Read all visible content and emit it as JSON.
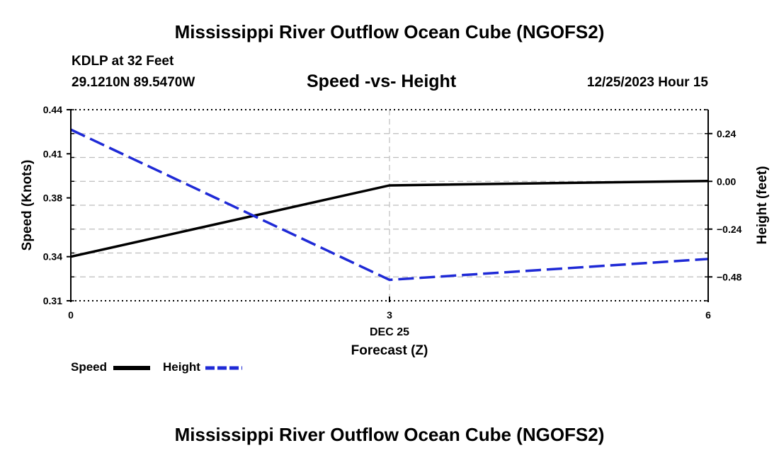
{
  "page_title": "Mississippi River Outflow Ocean Cube (NGOFS2)",
  "footer_title": "Mississippi River Outflow Ocean Cube (NGOFS2)",
  "station": {
    "name": "KDLP at 32 Feet",
    "coords": "29.1210N  89.5470W",
    "datetime": "12/25/2023 Hour 15"
  },
  "colors": {
    "speed": "#000000",
    "height": "#1f2ad6",
    "grid": "#bdbdbd"
  },
  "chart_data": {
    "type": "line",
    "title": "Speed -vs- Height",
    "xlabel": "Forecast (Z)",
    "x_date_label": "DEC 25",
    "x": [
      0,
      3,
      6
    ],
    "x_ticks": [
      "0",
      "3",
      "6"
    ],
    "xlim": [
      0,
      6
    ],
    "y_left": {
      "label": "Speed (Knots)",
      "lim": [
        0.31,
        0.44
      ],
      "ticks": [
        "0.44",
        "0.41",
        "0.38",
        "0.34",
        "0.31"
      ]
    },
    "y_right": {
      "label": "Height (feet)",
      "lim": [
        -0.6,
        0.36
      ],
      "ticks": [
        "0.24",
        "0.00",
        "−0.24",
        "−0.48"
      ]
    },
    "series": [
      {
        "name": "Speed",
        "axis": "left",
        "style": "solid",
        "values": [
          0.34,
          0.3885,
          0.3915
        ]
      },
      {
        "name": "Height",
        "axis": "right",
        "style": "dashed",
        "values": [
          0.26,
          -0.495,
          -0.39
        ]
      }
    ],
    "legend": [
      "Speed",
      "Height"
    ],
    "legend_position": "bottom-left"
  }
}
